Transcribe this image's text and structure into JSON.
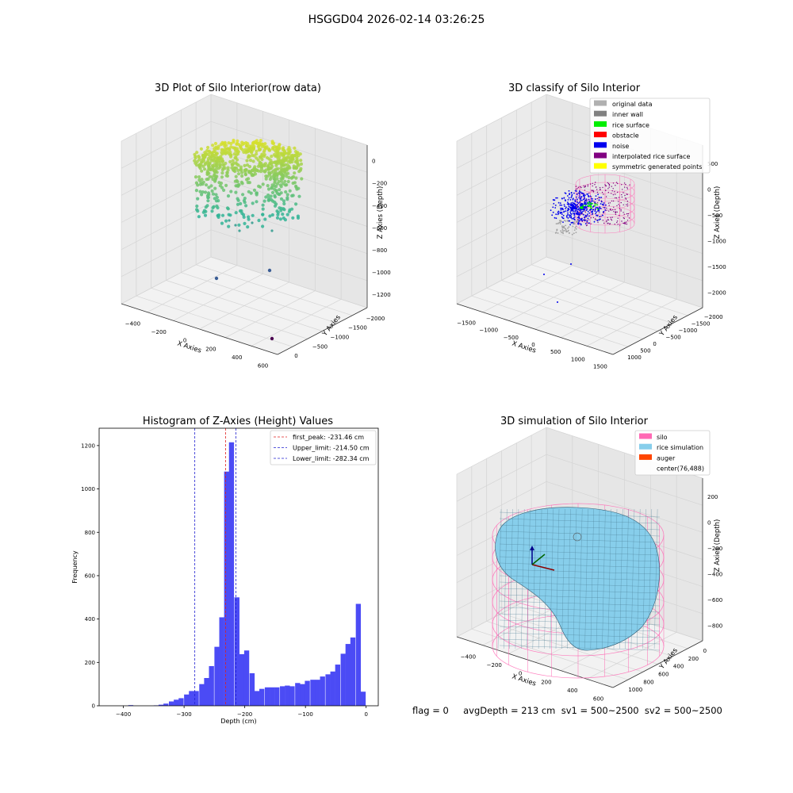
{
  "suptitle": "HSGGD04 2026-02-14 03:26:25",
  "footer": "flag = 0     avgDepth = 213 cm  sv1 = 500~2500  sv2 = 500~2500",
  "colors": {
    "hist_bar": "#4b4bf5",
    "peak_line": "#e02020",
    "limit_line": "#2020d0",
    "silo": "#ff69b4",
    "rice": "#87ceeb",
    "auger": "#ff4500"
  },
  "chart_data": [
    {
      "type": "scatter",
      "title": "3D Plot of Silo Interior(row data)",
      "xlabel": "X Axies",
      "ylabel": "Y Axies",
      "zlabel": "Z Axies (Depth)",
      "xticks": [
        "−400",
        "−200",
        "0",
        "200",
        "400",
        "600"
      ],
      "yticks": [
        "0",
        "−500",
        "−1000",
        "−1500",
        "−2000"
      ],
      "zticks": [
        "0",
        "−200",
        "−400",
        "−600",
        "−800",
        "−1000",
        "−1200"
      ]
    },
    {
      "type": "scatter",
      "title": "3D classify of Silo Interior",
      "xlabel": "X Axies",
      "ylabel": "Y Axies",
      "zlabel": "Z Axies (Depth)",
      "xticks": [
        "−1500",
        "−1000",
        "−500",
        "0",
        "500",
        "1000",
        "1500"
      ],
      "yticks": [
        "1000",
        "500",
        "0",
        "−500",
        "−1000",
        "−1500",
        "−2000"
      ],
      "zticks": [
        "500",
        "0",
        "−500",
        "−1000",
        "−1500",
        "−2000"
      ],
      "legend": [
        {
          "label": "original data",
          "color": "#b0b0b0"
        },
        {
          "label": "inner wall",
          "color": "#808080"
        },
        {
          "label": "rice surface",
          "color": "#00ee00"
        },
        {
          "label": "obstacle",
          "color": "#ff0000"
        },
        {
          "label": "noise",
          "color": "#0000ee"
        },
        {
          "label": "interpolated rice surface",
          "color": "#800080"
        },
        {
          "label": "symmetric generated points",
          "color": "#ffff00"
        }
      ]
    },
    {
      "type": "bar",
      "title": "Histogram of Z-Axies (Height) Values",
      "xlabel": "Depth (cm)",
      "ylabel": "Frequency",
      "xlim": [
        -440,
        20
      ],
      "ylim": [
        0,
        1280
      ],
      "xticks": [
        {
          "v": -400,
          "label": "−400"
        },
        {
          "v": -300,
          "label": "−300"
        },
        {
          "v": -200,
          "label": "−200"
        },
        {
          "v": -100,
          "label": "−100"
        },
        {
          "v": 0,
          "label": "0"
        }
      ],
      "yticks": [
        0,
        200,
        400,
        600,
        800,
        1000,
        1200
      ],
      "bin_width": 8.3,
      "bins": [
        {
          "x": -392,
          "y": 3
        },
        {
          "x": -350,
          "y": 2
        },
        {
          "x": -342,
          "y": 5
        },
        {
          "x": -334,
          "y": 10
        },
        {
          "x": -325,
          "y": 20
        },
        {
          "x": -317,
          "y": 28
        },
        {
          "x": -309,
          "y": 35
        },
        {
          "x": -300,
          "y": 52
        },
        {
          "x": -292,
          "y": 68
        },
        {
          "x": -284,
          "y": 68
        },
        {
          "x": -275,
          "y": 100
        },
        {
          "x": -267,
          "y": 128
        },
        {
          "x": -259,
          "y": 183
        },
        {
          "x": -250,
          "y": 272
        },
        {
          "x": -242,
          "y": 408
        },
        {
          "x": -234,
          "y": 1080
        },
        {
          "x": -226,
          "y": 1215
        },
        {
          "x": -217,
          "y": 500
        },
        {
          "x": -209,
          "y": 238
        },
        {
          "x": -201,
          "y": 255
        },
        {
          "x": -192,
          "y": 150
        },
        {
          "x": -184,
          "y": 68
        },
        {
          "x": -176,
          "y": 78
        },
        {
          "x": -167,
          "y": 85
        },
        {
          "x": -159,
          "y": 85
        },
        {
          "x": -151,
          "y": 85
        },
        {
          "x": -142,
          "y": 90
        },
        {
          "x": -134,
          "y": 93
        },
        {
          "x": -126,
          "y": 90
        },
        {
          "x": -117,
          "y": 105
        },
        {
          "x": -109,
          "y": 100
        },
        {
          "x": -101,
          "y": 115
        },
        {
          "x": -92,
          "y": 120
        },
        {
          "x": -84,
          "y": 120
        },
        {
          "x": -76,
          "y": 135
        },
        {
          "x": -67,
          "y": 145
        },
        {
          "x": -59,
          "y": 158
        },
        {
          "x": -51,
          "y": 190
        },
        {
          "x": -42,
          "y": 240
        },
        {
          "x": -34,
          "y": 285
        },
        {
          "x": -26,
          "y": 315
        },
        {
          "x": -17,
          "y": 470
        },
        {
          "x": -9,
          "y": 65
        }
      ],
      "vlines": [
        {
          "x": -231.46,
          "label": "first_peak: -231.46 cm",
          "kind": "peak"
        },
        {
          "x": -214.5,
          "label": "Upper_limit: -214.50 cm",
          "kind": "limit"
        },
        {
          "x": -282.34,
          "label": "Lower_limit: -282.34 cm",
          "kind": "limit"
        }
      ]
    },
    {
      "type": "surface",
      "title": "3D simulation of Silo Interior",
      "xlabel": "X Axies",
      "ylabel": "Y Axies",
      "zlabel": "Z Axies (Depth)",
      "xticks": [
        "−400",
        "−200",
        "0",
        "200",
        "400",
        "600"
      ],
      "yticks": [
        "1000",
        "800",
        "600",
        "400",
        "200",
        "0"
      ],
      "zticks": [
        "200",
        "0",
        "−200",
        "−400",
        "−600",
        "−800"
      ],
      "legend": [
        {
          "label": "silo",
          "color": "#ff69b4"
        },
        {
          "label": "rice simulation",
          "color": "#87ceeb"
        },
        {
          "label": "auger",
          "color": "#ff4500"
        },
        {
          "label": "center(76,488)",
          "color": ""
        }
      ]
    }
  ]
}
